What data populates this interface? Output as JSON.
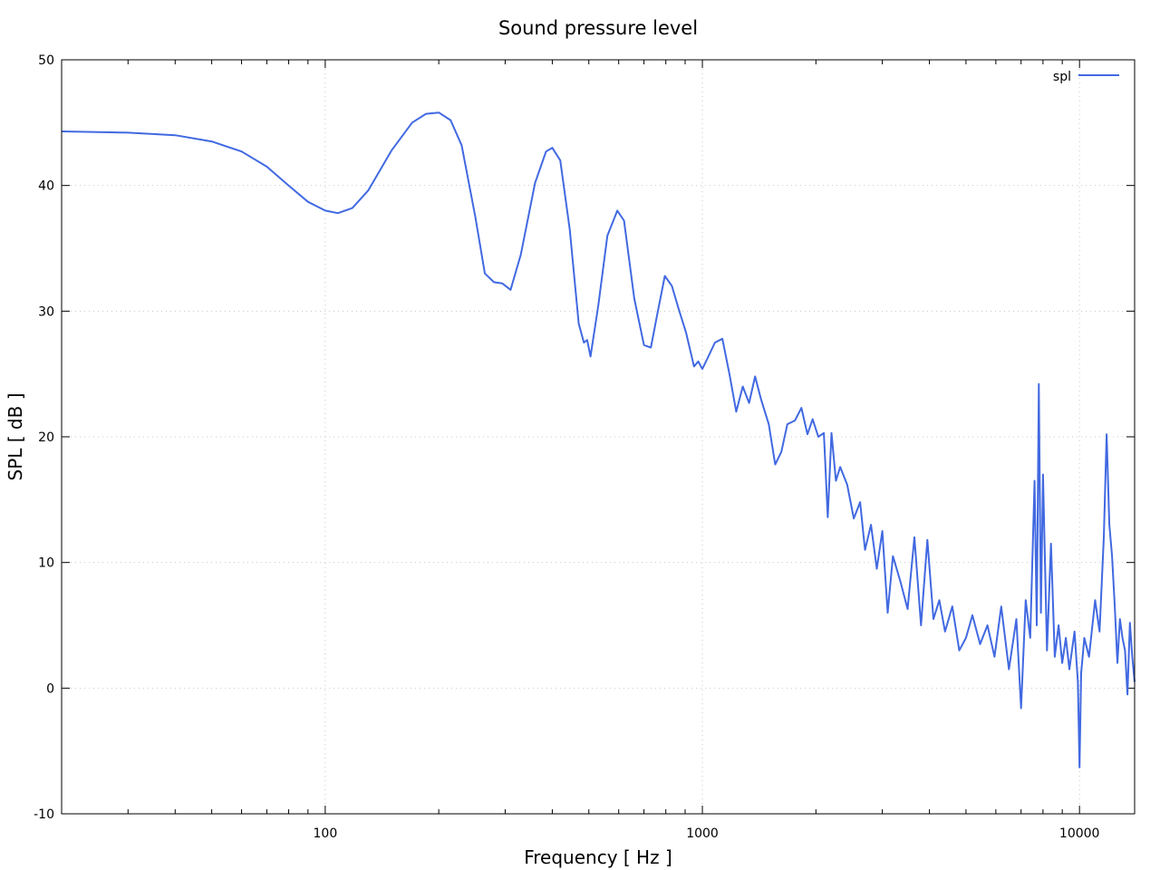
{
  "chart_data": {
    "type": "line",
    "title": "Sound pressure level",
    "xlabel": "Frequency [ Hz ]",
    "ylabel": "SPL [ dB ]",
    "xscale": "log",
    "xlim": [
      20,
      14000
    ],
    "ylim": [
      -10,
      50
    ],
    "grid": true,
    "legend_position": "top-right",
    "x_ticks": [
      {
        "value": 100,
        "label": "100"
      },
      {
        "value": 1000,
        "label": "1000"
      },
      {
        "value": 10000,
        "label": "10000"
      }
    ],
    "y_ticks": [
      {
        "value": 50,
        "label": "50"
      },
      {
        "value": 40,
        "label": "40"
      },
      {
        "value": 30,
        "label": "30"
      },
      {
        "value": 20,
        "label": "20"
      },
      {
        "value": 10,
        "label": "10"
      },
      {
        "value": 0,
        "label": "0"
      },
      {
        "value": -10,
        "label": "-10"
      }
    ],
    "series": [
      {
        "name": "spl",
        "color": "#4169e1",
        "x": [
          20,
          30,
          40,
          50,
          60,
          70,
          80,
          90,
          100,
          108,
          118,
          130,
          150,
          170,
          185,
          200,
          215,
          230,
          250,
          265,
          280,
          295,
          310,
          330,
          360,
          385,
          400,
          420,
          445,
          470,
          485,
          495,
          505,
          530,
          560,
          595,
          620,
          660,
          700,
          730,
          760,
          795,
          830,
          865,
          905,
          950,
          975,
          1000,
          1030,
          1080,
          1130,
          1180,
          1230,
          1280,
          1330,
          1380,
          1430,
          1500,
          1560,
          1620,
          1680,
          1760,
          1830,
          1900,
          1960,
          2030,
          2100,
          2150,
          2200,
          2260,
          2320,
          2420,
          2520,
          2620,
          2700,
          2800,
          2900,
          3000,
          3100,
          3200,
          3350,
          3500,
          3650,
          3800,
          3950,
          4100,
          4250,
          4400,
          4600,
          4800,
          5000,
          5200,
          5450,
          5700,
          5950,
          6200,
          6500,
          6800,
          7000,
          7200,
          7400,
          7600,
          7700,
          7800,
          7900,
          8000,
          8200,
          8400,
          8600,
          8800,
          9000,
          9200,
          9400,
          9700,
          9900,
          10000,
          10100,
          10300,
          10600,
          11000,
          11300,
          11600,
          11800,
          12000,
          12200,
          12400,
          12600,
          12800,
          13000,
          13200,
          13400,
          13600,
          13800,
          14000
        ],
        "values": [
          44.3,
          44.2,
          44.0,
          43.5,
          42.7,
          41.5,
          40.0,
          38.7,
          38.0,
          37.8,
          38.2,
          39.6,
          42.8,
          45.0,
          45.7,
          45.8,
          45.2,
          43.2,
          37.5,
          33.0,
          32.3,
          32.2,
          31.7,
          34.5,
          40.2,
          42.7,
          43.0,
          42.0,
          36.5,
          29.0,
          27.5,
          27.7,
          26.4,
          30.5,
          36.0,
          38.0,
          37.2,
          31.0,
          27.3,
          27.1,
          29.8,
          32.8,
          32.0,
          30.2,
          28.3,
          25.6,
          26.0,
          25.4,
          26.2,
          27.5,
          27.8,
          25.0,
          22.0,
          24.0,
          22.7,
          24.8,
          23.0,
          21.0,
          17.8,
          18.8,
          21.0,
          21.3,
          22.3,
          20.2,
          21.4,
          20.0,
          20.3,
          13.6,
          20.3,
          16.5,
          17.6,
          16.2,
          13.5,
          14.8,
          11.0,
          13.0,
          9.5,
          12.5,
          6.0,
          10.5,
          8.5,
          6.3,
          12.0,
          5.0,
          11.8,
          5.5,
          7.0,
          4.5,
          6.5,
          3.0,
          4.0,
          5.8,
          3.5,
          5.0,
          2.5,
          6.5,
          1.5,
          5.5,
          -1.6,
          7.0,
          4.0,
          16.5,
          5.0,
          24.2,
          6.0,
          17.0,
          3.0,
          11.5,
          2.5,
          5.0,
          2.0,
          4.0,
          1.5,
          4.5,
          0.5,
          -6.3,
          1.2,
          4.0,
          2.5,
          7.0,
          4.5,
          12.0,
          20.2,
          13.0,
          10.5,
          6.5,
          2.0,
          5.5,
          4.0,
          3.0,
          -0.5,
          5.2,
          2.5,
          0.5
        ]
      }
    ]
  }
}
